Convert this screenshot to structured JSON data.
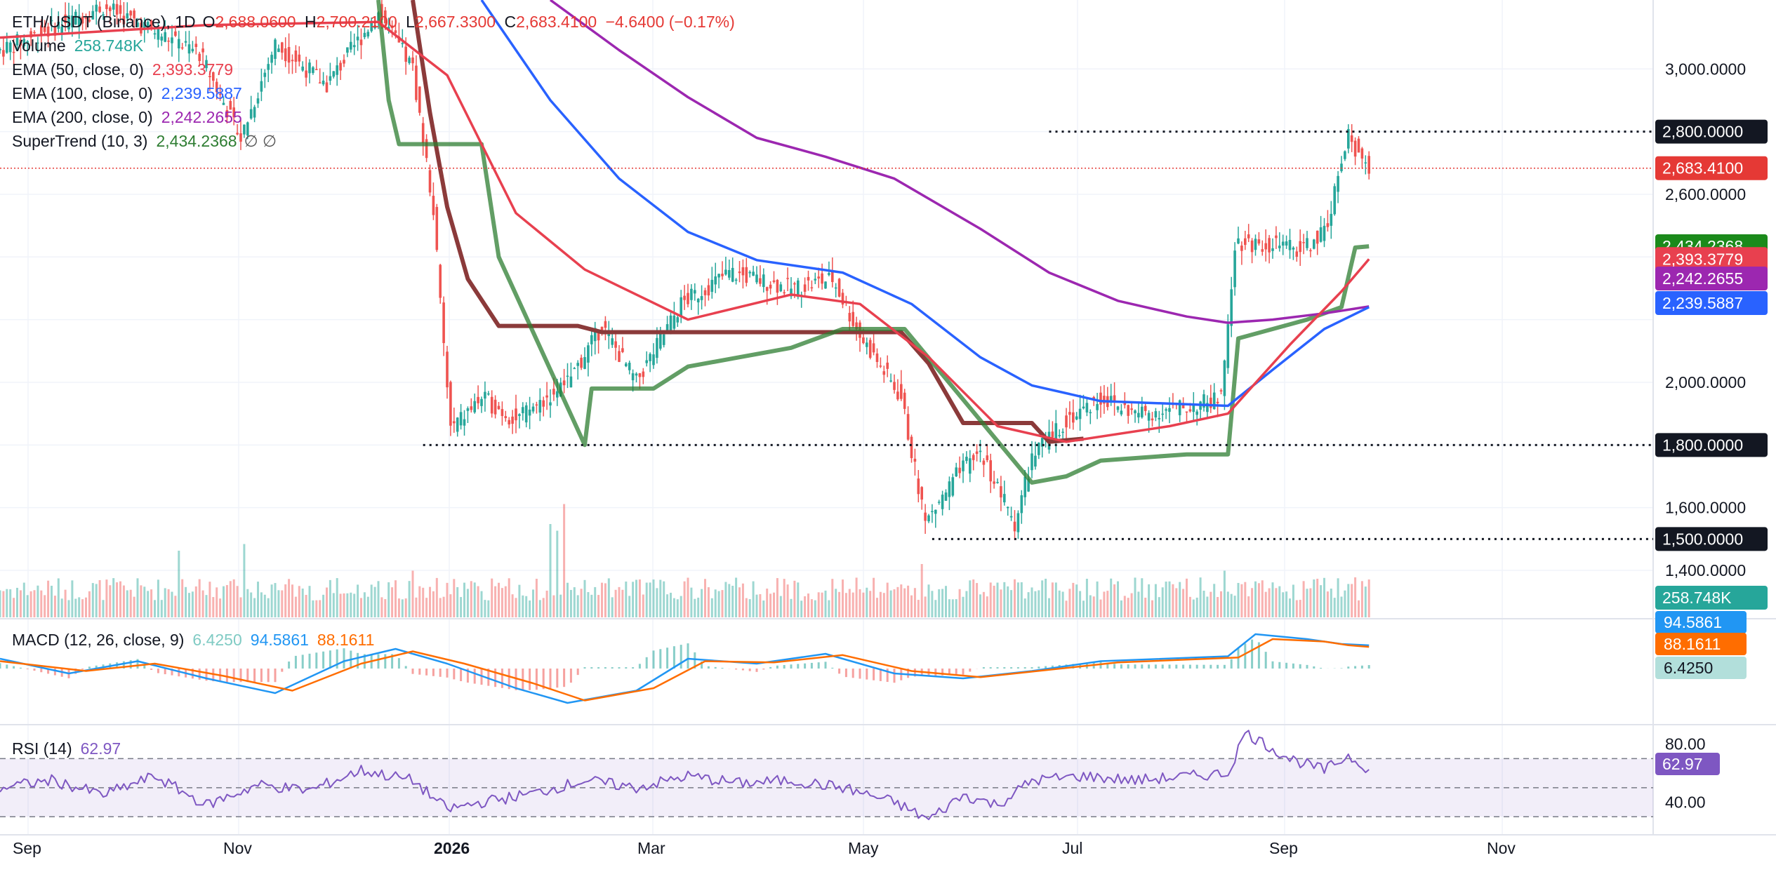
{
  "header": {
    "symbol": "ETH/USDT (Binance), 1D",
    "open_label": "O",
    "open": "2,688.0600",
    "high_label": "H",
    "high": "2,700.2100",
    "low_label": "L",
    "low": "2,667.3300",
    "close_label": "C",
    "close": "2,683.4100",
    "change": "−4.6400 (−0.17%)"
  },
  "legend": {
    "volume": {
      "label": "Volume",
      "value": "258.748K"
    },
    "ema50": {
      "label": "EMA (50, close, 0)",
      "value": "2,393.3779"
    },
    "ema100": {
      "label": "EMA (100, close, 0)",
      "value": "2,239.5887"
    },
    "ema200": {
      "label": "EMA (200, close, 0)",
      "value": "2,242.2655"
    },
    "supertrend": {
      "label": "SuperTrend (10, 3)",
      "value": "2,434.2368",
      "extra": "∅  ∅"
    }
  },
  "macd_legend": {
    "label": "MACD (12, 26, close, 9)",
    "hist": "6.4250",
    "macd": "94.5861",
    "signal": "88.1611"
  },
  "rsi_legend": {
    "label": "RSI (14)",
    "value": "62.97"
  },
  "colors": {
    "up": "#26a69a",
    "down": "#ef5350",
    "ema50": "#e8404f",
    "ema100": "#2962ff",
    "ema200": "#9c27b0",
    "supertrend": "#2e7d32",
    "supertrend_down": "#8b3a3a",
    "macd": "#2196f3",
    "signal": "#ff6d00",
    "rsi": "#7e57c2"
  },
  "chart_data": [
    {
      "type": "candlestick",
      "title": "ETH/USDT (Binance), 1D",
      "x_ticks": [
        "Sep",
        "Nov",
        "2026",
        "Mar",
        "May",
        "Jul",
        "Sep",
        "Nov"
      ],
      "y_ticks": [
        1400,
        1600,
        2000,
        2600,
        3000
      ],
      "ylim": [
        1250,
        3220
      ],
      "price_labels": [
        {
          "text": "2,800.0000",
          "value": 2800,
          "kind": "level"
        },
        {
          "text": "2,683.4100",
          "value": 2683.41,
          "kind": "last"
        },
        {
          "text": "2,434.2368",
          "value": 2434.2368,
          "kind": "supertrend"
        },
        {
          "text": "2,393.3779",
          "value": 2393.3779,
          "kind": "ema50"
        },
        {
          "text": "2,242.2655",
          "value": 2242.2655,
          "kind": "ema200"
        },
        {
          "text": "2,239.5887",
          "value": 2239.5887,
          "kind": "ema100"
        },
        {
          "text": "1,800.0000",
          "value": 1800,
          "kind": "level"
        },
        {
          "text": "1,500.0000",
          "value": 1500,
          "kind": "level"
        },
        {
          "text": "258.748K",
          "value": 258748,
          "kind": "volume"
        }
      ],
      "levels": [
        {
          "value": 2800,
          "from_day": 305,
          "to_day": 368
        },
        {
          "value": 1800,
          "from_day": 123,
          "to_day": 368
        },
        {
          "value": 1500,
          "from_day": 271,
          "to_day": 368
        }
      ],
      "price_path": [
        [
          0,
          3060
        ],
        [
          30,
          3200
        ],
        [
          58,
          3050
        ],
        [
          70,
          2780
        ],
        [
          80,
          3080
        ],
        [
          95,
          2950
        ],
        [
          110,
          3180
        ],
        [
          120,
          3000
        ],
        [
          126,
          2550
        ],
        [
          128,
          2250
        ],
        [
          131,
          1850
        ],
        [
          140,
          1950
        ],
        [
          150,
          1880
        ],
        [
          165,
          2000
        ],
        [
          175,
          2180
        ],
        [
          185,
          2000
        ],
        [
          198,
          2250
        ],
        [
          212,
          2350
        ],
        [
          230,
          2300
        ],
        [
          242,
          2330
        ],
        [
          250,
          2150
        ],
        [
          256,
          2050
        ],
        [
          262,
          1950
        ],
        [
          269,
          1550
        ],
        [
          278,
          1700
        ],
        [
          285,
          1780
        ],
        [
          295,
          1550
        ],
        [
          300,
          1760
        ],
        [
          310,
          1880
        ],
        [
          320,
          1950
        ],
        [
          330,
          1900
        ],
        [
          345,
          1920
        ],
        [
          355,
          1950
        ],
        [
          359,
          2450
        ],
        [
          370,
          2440
        ],
        [
          378,
          2420
        ],
        [
          385,
          2480
        ],
        [
          392,
          2780
        ],
        [
          398,
          2683
        ]
      ],
      "ema50": [
        [
          0,
          3100
        ],
        [
          60,
          3140
        ],
        [
          110,
          3150
        ],
        [
          130,
          2980
        ],
        [
          150,
          2540
        ],
        [
          170,
          2360
        ],
        [
          200,
          2200
        ],
        [
          230,
          2280
        ],
        [
          250,
          2250
        ],
        [
          270,
          2080
        ],
        [
          290,
          1860
        ],
        [
          310,
          1810
        ],
        [
          340,
          1860
        ],
        [
          357,
          1900
        ],
        [
          375,
          2120
        ],
        [
          390,
          2290
        ],
        [
          398,
          2393
        ]
      ],
      "ema100": [
        [
          140,
          3220
        ],
        [
          160,
          2900
        ],
        [
          180,
          2650
        ],
        [
          200,
          2480
        ],
        [
          220,
          2390
        ],
        [
          245,
          2350
        ],
        [
          265,
          2250
        ],
        [
          285,
          2080
        ],
        [
          300,
          1990
        ],
        [
          320,
          1940
        ],
        [
          345,
          1930
        ],
        [
          357,
          1925
        ],
        [
          370,
          2040
        ],
        [
          385,
          2170
        ],
        [
          398,
          2240
        ]
      ],
      "ema200": [
        [
          160,
          3220
        ],
        [
          180,
          3060
        ],
        [
          200,
          2910
        ],
        [
          220,
          2780
        ],
        [
          240,
          2720
        ],
        [
          260,
          2650
        ],
        [
          285,
          2490
        ],
        [
          305,
          2350
        ],
        [
          325,
          2260
        ],
        [
          345,
          2210
        ],
        [
          357,
          2190
        ],
        [
          370,
          2200
        ],
        [
          385,
          2220
        ],
        [
          398,
          2242
        ]
      ],
      "supertrend_down": [
        [
          120,
          3220
        ],
        [
          125,
          2860
        ],
        [
          130,
          2560
        ],
        [
          136,
          2330
        ],
        [
          145,
          2180
        ],
        [
          160,
          2180
        ],
        [
          168,
          2180
        ],
        [
          175,
          2160
        ],
        [
          262,
          2160
        ],
        [
          270,
          2060
        ],
        [
          280,
          1870
        ],
        [
          300,
          1870
        ],
        [
          305,
          1810
        ],
        [
          315,
          1820
        ]
      ],
      "supertrend_up": [
        [
          110,
          3220
        ],
        [
          113,
          2900
        ],
        [
          116,
          2760
        ],
        [
          140,
          2760
        ],
        [
          145,
          2400
        ],
        [
          170,
          1800
        ],
        [
          172,
          1980
        ],
        [
          190,
          1980
        ],
        [
          200,
          2050
        ],
        [
          215,
          2080
        ],
        [
          230,
          2110
        ],
        [
          245,
          2170
        ],
        [
          263,
          2170
        ],
        [
          300,
          1680
        ],
        [
          310,
          1700
        ],
        [
          320,
          1750
        ],
        [
          345,
          1770
        ],
        [
          357,
          1770
        ],
        [
          360,
          2140
        ],
        [
          380,
          2200
        ],
        [
          390,
          2240
        ],
        [
          394,
          2430
        ],
        [
          398,
          2434
        ]
      ],
      "volume_spikes": [
        [
          52,
          1.0
        ],
        [
          71,
          1.1
        ],
        [
          120,
          0.7
        ],
        [
          160,
          1.4
        ],
        [
          162,
          1.3
        ],
        [
          164,
          1.7
        ],
        [
          268,
          0.8
        ],
        [
          356,
          0.7
        ],
        [
          394,
          0.6
        ]
      ]
    },
    {
      "type": "line",
      "title": "MACD (12, 26, close, 9)",
      "series": [
        {
          "name": "MACD",
          "values": [
            [
              0,
              40
            ],
            [
              20,
              -20
            ],
            [
              40,
              30
            ],
            [
              60,
              -40
            ],
            [
              80,
              -100
            ],
            [
              100,
              30
            ],
            [
              115,
              80
            ],
            [
              130,
              20
            ],
            [
              150,
              -80
            ],
            [
              165,
              -140
            ],
            [
              185,
              -90
            ],
            [
              200,
              40
            ],
            [
              220,
              20
            ],
            [
              240,
              60
            ],
            [
              260,
              -20
            ],
            [
              280,
              -40
            ],
            [
              300,
              -10
            ],
            [
              320,
              30
            ],
            [
              357,
              50
            ],
            [
              365,
              140
            ],
            [
              380,
              120
            ],
            [
              390,
              100
            ],
            [
              398,
              94.59
            ]
          ]
        },
        {
          "name": "Signal",
          "values": [
            [
              0,
              30
            ],
            [
              25,
              -10
            ],
            [
              45,
              20
            ],
            [
              65,
              -30
            ],
            [
              85,
              -90
            ],
            [
              105,
              20
            ],
            [
              120,
              70
            ],
            [
              135,
              20
            ],
            [
              155,
              -60
            ],
            [
              170,
              -130
            ],
            [
              190,
              -80
            ],
            [
              205,
              30
            ],
            [
              225,
              25
            ],
            [
              245,
              55
            ],
            [
              265,
              -10
            ],
            [
              285,
              -35
            ],
            [
              305,
              -5
            ],
            [
              325,
              25
            ],
            [
              360,
              45
            ],
            [
              370,
              120
            ],
            [
              385,
              110
            ],
            [
              392,
              95
            ],
            [
              398,
              88.16
            ]
          ]
        }
      ],
      "last_values": [
        "94.5861",
        "88.1611",
        "6.4250"
      ]
    },
    {
      "type": "line",
      "title": "RSI (14)",
      "ylim": [
        20,
        90
      ],
      "y_ticks": [
        80,
        40
      ],
      "bands": [
        70,
        50,
        30
      ],
      "series": [
        {
          "name": "RSI",
          "values": [
            [
              0,
              50
            ],
            [
              15,
              55
            ],
            [
              30,
              45
            ],
            [
              45,
              58
            ],
            [
              60,
              38
            ],
            [
              75,
              52
            ],
            [
              90,
              48
            ],
            [
              105,
              62
            ],
            [
              120,
              55
            ],
            [
              130,
              35
            ],
            [
              140,
              40
            ],
            [
              155,
              46
            ],
            [
              170,
              55
            ],
            [
              185,
              50
            ],
            [
              200,
              58
            ],
            [
              215,
              53
            ],
            [
              230,
              55
            ],
            [
              245,
              50
            ],
            [
              260,
              40
            ],
            [
              270,
              28
            ],
            [
              280,
              45
            ],
            [
              290,
              38
            ],
            [
              300,
              55
            ],
            [
              315,
              58
            ],
            [
              330,
              55
            ],
            [
              357,
              60
            ],
            [
              362,
              88
            ],
            [
              375,
              70
            ],
            [
              385,
              62
            ],
            [
              392,
              72
            ],
            [
              398,
              62.97
            ]
          ]
        }
      ]
    }
  ]
}
